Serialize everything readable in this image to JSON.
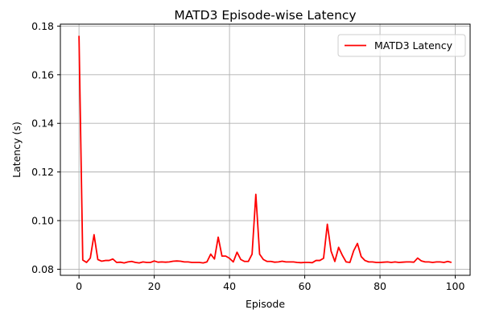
{
  "chart_data": {
    "type": "line",
    "title": "MATD3 Episode-wise Latency",
    "xlabel": "Episode",
    "ylabel": "Latency (s)",
    "xlim": [
      -4.95,
      103.95
    ],
    "ylim": [
      0.0775,
      0.1808
    ],
    "xticks": [
      0,
      20,
      40,
      60,
      80,
      100
    ],
    "yticks": [
      0.08,
      0.1,
      0.12,
      0.14,
      0.16,
      0.18
    ],
    "xtick_labels": [
      "0",
      "20",
      "40",
      "60",
      "80",
      "100"
    ],
    "ytick_labels": [
      "0.08",
      "0.10",
      "0.12",
      "0.14",
      "0.16",
      "0.18"
    ],
    "grid": true,
    "legend_position": "upper right",
    "series": [
      {
        "name": "MATD3 Latency",
        "color": "#ff0000",
        "x": [
          0,
          1,
          2,
          3,
          4,
          5,
          6,
          7,
          8,
          9,
          10,
          11,
          12,
          13,
          14,
          15,
          16,
          17,
          18,
          19,
          20,
          21,
          22,
          23,
          24,
          25,
          26,
          27,
          28,
          29,
          30,
          31,
          32,
          33,
          34,
          35,
          36,
          37,
          38,
          39,
          40,
          41,
          42,
          43,
          44,
          45,
          46,
          47,
          48,
          49,
          50,
          51,
          52,
          53,
          54,
          55,
          56,
          57,
          58,
          59,
          60,
          61,
          62,
          63,
          64,
          65,
          66,
          67,
          68,
          69,
          70,
          71,
          72,
          73,
          74,
          75,
          76,
          77,
          78,
          79,
          80,
          81,
          82,
          83,
          84,
          85,
          86,
          87,
          88,
          89,
          90,
          91,
          92,
          93,
          94,
          95,
          96,
          97,
          98,
          99
        ],
        "values": [
          0.176,
          0.0838,
          0.0828,
          0.0846,
          0.0942,
          0.084,
          0.0833,
          0.0836,
          0.0836,
          0.0842,
          0.0828,
          0.0829,
          0.0826,
          0.083,
          0.0832,
          0.0828,
          0.0826,
          0.083,
          0.0828,
          0.0828,
          0.0834,
          0.0829,
          0.083,
          0.0829,
          0.083,
          0.0833,
          0.0834,
          0.0833,
          0.083,
          0.083,
          0.0828,
          0.0828,
          0.0828,
          0.0826,
          0.083,
          0.0862,
          0.0842,
          0.0932,
          0.0854,
          0.0854,
          0.0845,
          0.083,
          0.087,
          0.084,
          0.0832,
          0.0832,
          0.0862,
          0.1108,
          0.0862,
          0.084,
          0.0832,
          0.0832,
          0.0829,
          0.083,
          0.0833,
          0.083,
          0.083,
          0.083,
          0.0828,
          0.0827,
          0.0828,
          0.0828,
          0.0827,
          0.0836,
          0.0836,
          0.0845,
          0.0985,
          0.0874,
          0.0832,
          0.089,
          0.0857,
          0.083,
          0.0828,
          0.0876,
          0.0906,
          0.0852,
          0.0836,
          0.083,
          0.083,
          0.0828,
          0.0828,
          0.0829,
          0.083,
          0.0828,
          0.083,
          0.0828,
          0.0829,
          0.083,
          0.083,
          0.0829,
          0.0846,
          0.0834,
          0.083,
          0.083,
          0.0828,
          0.083,
          0.083,
          0.0828,
          0.0832,
          0.0828
        ]
      }
    ]
  }
}
